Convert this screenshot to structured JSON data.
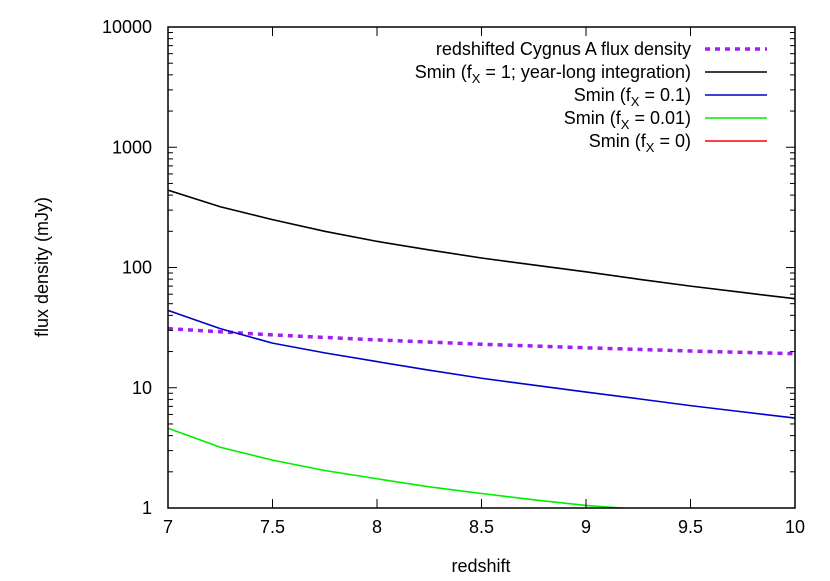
{
  "chart_data": {
    "type": "line",
    "title": "",
    "xlabel": "redshift",
    "ylabel": "flux density (mJy)",
    "xlim": [
      7,
      10
    ],
    "ylim": [
      1,
      10000
    ],
    "yscale": "log",
    "grid": false,
    "legend_position": "top-right",
    "x_ticks": [
      {
        "value": 7,
        "label": "7"
      },
      {
        "value": 7.5,
        "label": "7.5"
      },
      {
        "value": 8,
        "label": "8"
      },
      {
        "value": 8.5,
        "label": "8.5"
      },
      {
        "value": 9,
        "label": "9"
      },
      {
        "value": 9.5,
        "label": "9.5"
      },
      {
        "value": 10,
        "label": "10"
      }
    ],
    "y_ticks": [
      {
        "value": 1,
        "label": "1"
      },
      {
        "value": 10,
        "label": "10"
      },
      {
        "value": 100,
        "label": "100"
      },
      {
        "value": 1000,
        "label": "1000"
      },
      {
        "value": 10000,
        "label": "10000"
      }
    ],
    "series": [
      {
        "legend_pre": "redshifted Cygnus A flux density",
        "legend_sub": "",
        "legend_post": "",
        "color": "#a020f0",
        "dash": true,
        "x": [
          7,
          7.5,
          8,
          8.5,
          9,
          9.5,
          10
        ],
        "y": [
          31,
          27.5,
          25,
          23,
          21.5,
          20.2,
          19.2
        ]
      },
      {
        "legend_pre": "Smin (f",
        "legend_sub": "X",
        "legend_post": " = 1; year-long integration)",
        "color": "#000000",
        "dash": false,
        "x": [
          7,
          7.25,
          7.5,
          7.75,
          8,
          8.25,
          8.5,
          8.75,
          9,
          9.25,
          9.5,
          9.75,
          10
        ],
        "y": [
          440,
          320,
          250,
          200,
          165,
          140,
          120,
          105,
          92,
          80,
          70,
          62,
          55
        ]
      },
      {
        "legend_pre": "Smin (f",
        "legend_sub": "X",
        "legend_post": " = 0.1)",
        "color": "#0000cc",
        "dash": false,
        "x": [
          7,
          7.25,
          7.5,
          7.75,
          8,
          8.25,
          8.5,
          8.75,
          9,
          9.25,
          9.5,
          9.75,
          10
        ],
        "y": [
          44,
          31,
          23.5,
          19.5,
          16.5,
          14,
          12,
          10.5,
          9.2,
          8.1,
          7.1,
          6.3,
          5.6
        ]
      },
      {
        "legend_pre": "Smin (f",
        "legend_sub": "X",
        "legend_post": " = 0.01)",
        "color": "#00ee00",
        "dash": false,
        "x": [
          7,
          7.25,
          7.5,
          7.75,
          8,
          8.25,
          8.5,
          8.75,
          9,
          9.2
        ],
        "y": [
          4.6,
          3.2,
          2.5,
          2.05,
          1.75,
          1.5,
          1.32,
          1.17,
          1.05,
          0.99
        ]
      },
      {
        "legend_pre": "Smin (f",
        "legend_sub": "X",
        "legend_post": " = 0)",
        "color": "#ff0000",
        "dash": false,
        "x": [],
        "y": []
      }
    ]
  }
}
